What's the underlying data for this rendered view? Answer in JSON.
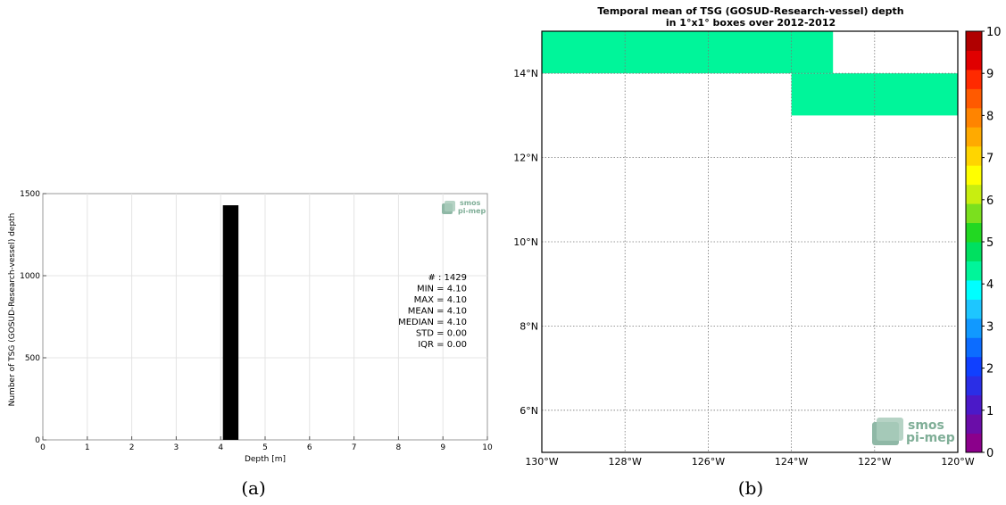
{
  "chart_data": [
    {
      "type": "bar",
      "title": "",
      "xlabel": "Depth [m]",
      "ylabel": "Number of TSG (GOSUD-Research-vessel) depth",
      "xlim": [
        0,
        10
      ],
      "ylim": [
        0,
        1500
      ],
      "xticks": [
        "0",
        "1",
        "2",
        "3",
        "4",
        "5",
        "6",
        "7",
        "8",
        "9",
        "10"
      ],
      "yticks": [
        "0",
        "500",
        "1000",
        "1500"
      ],
      "grid": true,
      "bars": [
        {
          "x0": 4.05,
          "x1": 4.4,
          "value": 1429
        }
      ],
      "bar_color": "#000000",
      "stats": [
        "# : 1429",
        "MIN = 4.10",
        "MAX =  4.10",
        "MEAN = 4.10",
        "MEDIAN = 4.10",
        "STD = 0.00",
        "IQR = 0.00"
      ],
      "logo": {
        "line1": "smos",
        "line2": "pi-mep"
      },
      "caption": "(a)"
    },
    {
      "type": "heatmap",
      "title": "Temporal mean of TSG (GOSUD-Research-vessel) depth",
      "subtitle": "in 1°x1° boxes over 2012-2012",
      "lon_range": [
        -130,
        -120
      ],
      "lat_range": [
        5,
        15
      ],
      "xticks": [
        "130°W",
        "128°W",
        "126°W",
        "124°W",
        "122°W",
        "120°W"
      ],
      "yticks": [
        "6°N",
        "8°N",
        "10°N",
        "12°N",
        "14°N"
      ],
      "grid": true,
      "cells": [
        {
          "lon": [
            -130,
            -123
          ],
          "lat": [
            14,
            15
          ],
          "value": 4.1
        },
        {
          "lon": [
            -124,
            -120
          ],
          "lat": [
            13,
            14
          ],
          "value": 4.1
        }
      ],
      "cell_color": "#00f59a",
      "colorbar": {
        "min": 0,
        "max": 10,
        "ticks": [
          "0",
          "1",
          "2",
          "3",
          "4",
          "5",
          "6",
          "7",
          "8",
          "9",
          "10"
        ],
        "colors": [
          "#8b008b",
          "#6a0da8",
          "#4b19c8",
          "#2a2ee6",
          "#1040ff",
          "#0c6cff",
          "#1199ff",
          "#1ec6ff",
          "#00ffff",
          "#00f59a",
          "#00e060",
          "#22d822",
          "#7be01e",
          "#c8ee10",
          "#ffff00",
          "#ffd500",
          "#ffaa00",
          "#ff8400",
          "#ff5a00",
          "#ff2a00",
          "#e00000",
          "#b00000"
        ]
      },
      "logo": {
        "line1": "smos",
        "line2": "pi-mep"
      },
      "caption": "(b)"
    }
  ]
}
